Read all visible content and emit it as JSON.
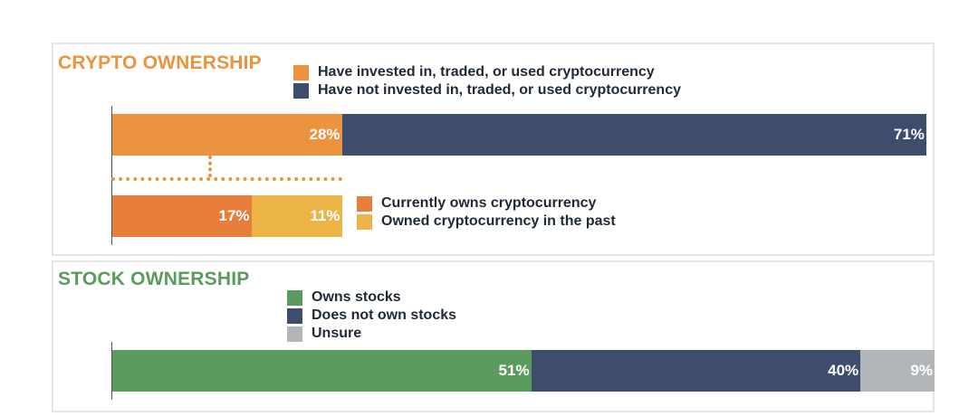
{
  "chart_data": [
    {
      "type": "bar",
      "orientation": "horizontal",
      "stacked": true,
      "title": "CRYPTO OWNERSHIP",
      "series": [
        {
          "name": "Have invested in, traded, or used cryptocurrency",
          "value": 28,
          "label": "28%",
          "color": "#ec9340"
        },
        {
          "name": "Have not invested in, traded, or used cryptocurrency",
          "value": 71,
          "label": "71%",
          "color": "#3d4d6b"
        }
      ],
      "breakdown": [
        {
          "name": "Currently owns cryptocurrency",
          "value": 17,
          "label": "17%",
          "color": "#e87e3b"
        },
        {
          "name": "Owned cryptocurrency in the past",
          "value": 11,
          "label": "11%",
          "color": "#ecb545"
        }
      ],
      "xlim": [
        0,
        100
      ],
      "grid": false,
      "legend_position": "top"
    },
    {
      "type": "bar",
      "orientation": "horizontal",
      "stacked": true,
      "title": "STOCK OWNERSHIP",
      "series": [
        {
          "name": "Owns stocks",
          "value": 51,
          "label": "51%",
          "color": "#5c9b5e"
        },
        {
          "name": "Does not own stocks",
          "value": 40,
          "label": "40%",
          "color": "#3d4d6b"
        },
        {
          "name": "Unsure",
          "value": 9,
          "label": "9%",
          "color": "#b3b6b9"
        }
      ],
      "xlim": [
        0,
        100
      ],
      "grid": false,
      "legend_position": "top"
    }
  ],
  "colors": {
    "crypto_title": "#ec9340",
    "stock_title": "#5c9b5e",
    "panel_border": "#e3e5e6"
  }
}
